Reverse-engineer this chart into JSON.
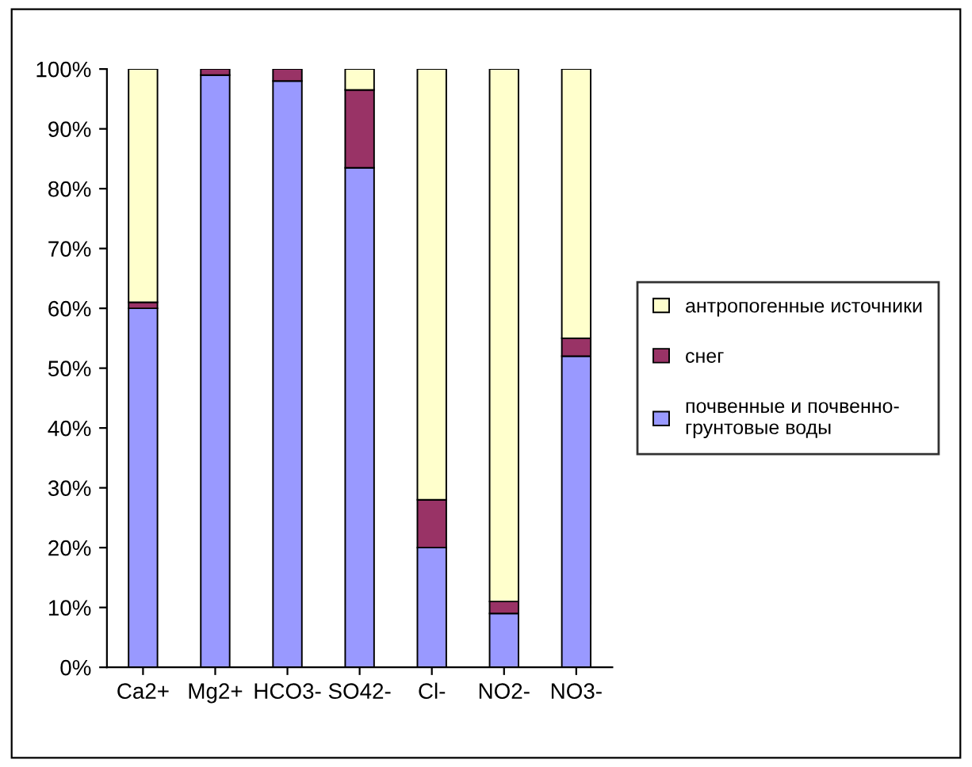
{
  "chart_data": {
    "type": "bar",
    "stacked": true,
    "categories": [
      "Ca2+",
      "Mg2+",
      "HCO3-",
      "SO42-",
      "Cl-",
      "NO2-",
      "NO3-"
    ],
    "series": [
      {
        "name": "почвенные и почвенно-грунтовые воды",
        "color": "#9999ff",
        "values": [
          60,
          99,
          98,
          83.5,
          20,
          9,
          52
        ]
      },
      {
        "name": "снег",
        "color": "#993366",
        "values": [
          1,
          1,
          2,
          13,
          8,
          2,
          3
        ]
      },
      {
        "name": "антропогенные источники",
        "color": "#ffffcc",
        "values": [
          39,
          0,
          0,
          3.5,
          72,
          89,
          45
        ]
      }
    ],
    "ylim": [
      0,
      100
    ],
    "yticks": [
      {
        "value": 0,
        "label": "0%"
      },
      {
        "value": 10,
        "label": "10%"
      },
      {
        "value": 20,
        "label": "20%"
      },
      {
        "value": 30,
        "label": "30%"
      },
      {
        "value": 40,
        "label": "40%"
      },
      {
        "value": 50,
        "label": "50%"
      },
      {
        "value": 60,
        "label": "60%"
      },
      {
        "value": 70,
        "label": "70%"
      },
      {
        "value": 80,
        "label": "80%"
      },
      {
        "value": 90,
        "label": "90%"
      },
      {
        "value": 100,
        "label": "100%"
      }
    ],
    "grid": false,
    "legend": "right"
  }
}
